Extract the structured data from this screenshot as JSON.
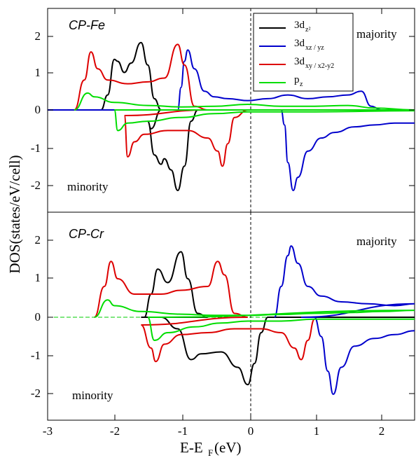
{
  "figure": {
    "ylabel": "DOS(states/eV/cell)",
    "xlabel_main": "E-E",
    "xlabel_sub": "F",
    "xlabel_unit": "(eV)",
    "xticks": [
      "-3",
      "-2",
      "-1",
      "0",
      "1",
      "2"
    ]
  },
  "legend": [
    {
      "main": "3d",
      "sub": "z²",
      "color": "#000000"
    },
    {
      "main": "3d",
      "sub": "xz / yz",
      "color": "#0000cc"
    },
    {
      "main": "3d",
      "sub": "xy / x2-y2",
      "color": "#dd0000"
    },
    {
      "main": "p",
      "sub": "z",
      "color": "#00dd00"
    }
  ],
  "panels": [
    {
      "label": "CP-Fe",
      "spin_up_label": "majority",
      "spin_down_label": "minority",
      "yticks": [
        "2",
        "1",
        "0",
        "-1",
        "-2"
      ]
    },
    {
      "label": "CP-Cr",
      "spin_up_label": "majority",
      "spin_down_label": "minority",
      "yticks": [
        "2",
        "1",
        "0",
        "-1",
        "-2"
      ]
    }
  ],
  "chart_data": [
    {
      "type": "line",
      "title": "CP-Fe",
      "xlabel": "E-E_F(eV)",
      "ylabel": "DOS(states/eV/cell)",
      "xlim": [
        -3,
        2.5
      ],
      "ylim": [
        -2.75,
        2.4
      ],
      "fermi_level": 0,
      "series": [
        {
          "name": "3d_z2",
          "color": "#000000",
          "points": [
            [
              -2.2,
              0
            ],
            [
              -2.1,
              0.4
            ],
            [
              -2.0,
              1.35
            ],
            [
              -1.95,
              1.3
            ],
            [
              -1.85,
              1.0
            ],
            [
              -1.75,
              1.25
            ],
            [
              -1.6,
              1.8
            ],
            [
              -1.5,
              1.2
            ],
            [
              -1.4,
              0.3
            ],
            [
              -1.3,
              0
            ],
            [
              -0.9,
              0
            ],
            [
              -0.8,
              0
            ],
            [
              -1.3,
              0
            ],
            [
              -1.45,
              -0.5
            ],
            [
              -1.5,
              -0.3
            ],
            [
              -1.4,
              -1.2
            ],
            [
              -1.3,
              -1.45
            ],
            [
              -1.25,
              -1.3
            ],
            [
              -1.15,
              -1.6
            ],
            [
              -1.05,
              -2.15
            ],
            [
              -0.95,
              -1.5
            ],
            [
              -0.85,
              -0.3
            ],
            [
              -0.75,
              0
            ],
            [
              2.5,
              0
            ]
          ]
        },
        {
          "name": "3d_xz/yz",
          "color": "#0000cc",
          "points": [
            [
              -3,
              0
            ],
            [
              -1.05,
              0
            ],
            [
              -1.0,
              0.6
            ],
            [
              -0.95,
              1.3
            ],
            [
              -0.9,
              1.6
            ],
            [
              -0.8,
              1.1
            ],
            [
              -0.65,
              0.5
            ],
            [
              -0.5,
              0.35
            ],
            [
              -0.3,
              0.3
            ],
            [
              0,
              0.25
            ],
            [
              0.3,
              0.3
            ],
            [
              0.6,
              0.4
            ],
            [
              0.9,
              0.3
            ],
            [
              1.2,
              0.35
            ],
            [
              1.5,
              0.4
            ],
            [
              1.7,
              0.5
            ],
            [
              1.85,
              0.1
            ],
            [
              2.0,
              0
            ],
            [
              2.5,
              0
            ],
            [
              0.5,
              0
            ],
            [
              0.55,
              -0.4
            ],
            [
              0.6,
              -1.4
            ],
            [
              0.68,
              -2.15
            ],
            [
              0.75,
              -1.8
            ],
            [
              0.9,
              -1.1
            ],
            [
              1.1,
              -0.75
            ],
            [
              1.3,
              -0.6
            ],
            [
              1.6,
              -0.45
            ],
            [
              1.9,
              -0.4
            ],
            [
              2.2,
              -0.35
            ],
            [
              2.5,
              -0.35
            ]
          ]
        },
        {
          "name": "3d_xy/x2-y2",
          "color": "#dd0000",
          "points": [
            [
              -2.6,
              0
            ],
            [
              -2.45,
              0.8
            ],
            [
              -2.35,
              1.55
            ],
            [
              -2.25,
              1.1
            ],
            [
              -2.1,
              0.8
            ],
            [
              -1.8,
              0.7
            ],
            [
              -1.5,
              0.75
            ],
            [
              -1.25,
              0.85
            ],
            [
              -1.05,
              1.75
            ],
            [
              -0.95,
              1.2
            ],
            [
              -0.8,
              0.1
            ],
            [
              -0.6,
              0
            ],
            [
              -1.85,
              -0.15
            ],
            [
              -1.8,
              -1.25
            ],
            [
              -1.7,
              -0.85
            ],
            [
              -1.55,
              -0.65
            ],
            [
              -1.2,
              -0.55
            ],
            [
              -0.9,
              -0.55
            ],
            [
              -0.6,
              -0.75
            ],
            [
              -0.45,
              -1.1
            ],
            [
              -0.38,
              -1.5
            ],
            [
              -0.3,
              -0.9
            ],
            [
              -0.2,
              -0.2
            ],
            [
              0,
              0
            ]
          ]
        },
        {
          "name": "p_z",
          "color": "#00dd00",
          "points": [
            [
              -2.6,
              0
            ],
            [
              -2.4,
              0.45
            ],
            [
              -2.3,
              0.35
            ],
            [
              -2.0,
              0.2
            ],
            [
              -1.5,
              0.12
            ],
            [
              -1.0,
              0.08
            ],
            [
              -0.5,
              0.1
            ],
            [
              0,
              0.15
            ],
            [
              0.5,
              0.1
            ],
            [
              1.0,
              0.1
            ],
            [
              1.5,
              0.12
            ],
            [
              1.9,
              0.05
            ],
            [
              2.5,
              0
            ],
            [
              -2.0,
              0
            ],
            [
              -1.95,
              -0.55
            ],
            [
              -1.8,
              -0.35
            ],
            [
              -1.5,
              -0.3
            ],
            [
              -1.0,
              -0.2
            ],
            [
              -0.5,
              -0.1
            ],
            [
              0,
              -0.05
            ],
            [
              1.0,
              -0.05
            ],
            [
              2.5,
              -0.02
            ]
          ]
        }
      ]
    },
    {
      "type": "line",
      "title": "CP-Cr",
      "xlabel": "E-E_F(eV)",
      "ylabel": "DOS(states/eV/cell)",
      "xlim": [
        -3,
        2.5
      ],
      "ylim": [
        -2.75,
        2.4
      ],
      "fermi_level": 0,
      "series": [
        {
          "name": "3d_z2",
          "color": "#000000",
          "points": [
            [
              -1.55,
              0
            ],
            [
              -1.45,
              0.6
            ],
            [
              -1.35,
              1.25
            ],
            [
              -1.2,
              0.9
            ],
            [
              -1.0,
              1.7
            ],
            [
              -0.9,
              1.0
            ],
            [
              -0.75,
              0.1
            ],
            [
              -0.6,
              0
            ],
            [
              -1.6,
              0
            ],
            [
              -1.3,
              0
            ],
            [
              -1.05,
              -0.3
            ],
            [
              -0.85,
              -1.1
            ],
            [
              -0.7,
              -0.95
            ],
            [
              -0.4,
              -0.9
            ],
            [
              -0.15,
              -1.3
            ],
            [
              0,
              -1.75
            ],
            [
              0.1,
              -1.2
            ],
            [
              0.2,
              -0.4
            ],
            [
              0.3,
              0
            ],
            [
              2.5,
              0
            ]
          ]
        },
        {
          "name": "3d_xz/yz",
          "color": "#0000cc",
          "points": [
            [
              0.4,
              0
            ],
            [
              0.5,
              0.8
            ],
            [
              0.6,
              1.6
            ],
            [
              0.65,
              1.85
            ],
            [
              0.75,
              1.4
            ],
            [
              0.9,
              0.8
            ],
            [
              1.1,
              0.55
            ],
            [
              1.4,
              0.4
            ],
            [
              1.8,
              0.35
            ],
            [
              2.2,
              0.3
            ],
            [
              2.5,
              0.35
            ],
            [
              0.8,
              0
            ],
            [
              1.0,
              0
            ],
            [
              1.1,
              -0.5
            ],
            [
              1.2,
              -1.4
            ],
            [
              1.28,
              -2.0
            ],
            [
              1.4,
              -1.3
            ],
            [
              1.6,
              -0.75
            ],
            [
              1.9,
              -0.55
            ],
            [
              2.2,
              -0.45
            ],
            [
              2.5,
              -0.35
            ]
          ]
        },
        {
          "name": "3d_xy/x2-y2",
          "color": "#dd0000",
          "points": [
            [
              -2.3,
              0
            ],
            [
              -2.15,
              0.8
            ],
            [
              -2.05,
              1.45
            ],
            [
              -1.95,
              1.0
            ],
            [
              -1.7,
              0.6
            ],
            [
              -1.3,
              0.6
            ],
            [
              -1.0,
              0.7
            ],
            [
              -0.6,
              0.8
            ],
            [
              -0.45,
              1.45
            ],
            [
              -0.35,
              1.1
            ],
            [
              -0.2,
              0.1
            ],
            [
              0,
              0
            ],
            [
              -1.6,
              -0.2
            ],
            [
              -1.45,
              -0.8
            ],
            [
              -1.38,
              -1.15
            ],
            [
              -1.25,
              -0.7
            ],
            [
              -1.0,
              -0.45
            ],
            [
              -0.6,
              -0.4
            ],
            [
              -0.2,
              -0.3
            ],
            [
              0.2,
              -0.3
            ],
            [
              0.5,
              -0.4
            ],
            [
              0.7,
              -0.8
            ],
            [
              0.8,
              -1.1
            ],
            [
              0.9,
              -0.6
            ],
            [
              1.0,
              -0.05
            ]
          ]
        },
        {
          "name": "p_z",
          "color": "#00dd00",
          "points": [
            [
              -2.3,
              0
            ],
            [
              -2.1,
              0.45
            ],
            [
              -2.0,
              0.3
            ],
            [
              -1.6,
              0.15
            ],
            [
              -1.0,
              0.08
            ],
            [
              -0.5,
              0.05
            ],
            [
              0,
              0.05
            ],
            [
              0.5,
              0.07
            ],
            [
              1.0,
              0.1
            ],
            [
              1.5,
              0.12
            ],
            [
              2.0,
              0.15
            ],
            [
              2.5,
              0.18
            ],
            [
              -1.5,
              0
            ],
            [
              -1.4,
              -0.6
            ],
            [
              -1.2,
              -0.4
            ],
            [
              -0.8,
              -0.25
            ],
            [
              -0.4,
              -0.15
            ],
            [
              0,
              -0.1
            ],
            [
              0.5,
              -0.1
            ],
            [
              1.0,
              -0.05
            ],
            [
              2.5,
              -0.05
            ]
          ]
        }
      ]
    }
  ]
}
